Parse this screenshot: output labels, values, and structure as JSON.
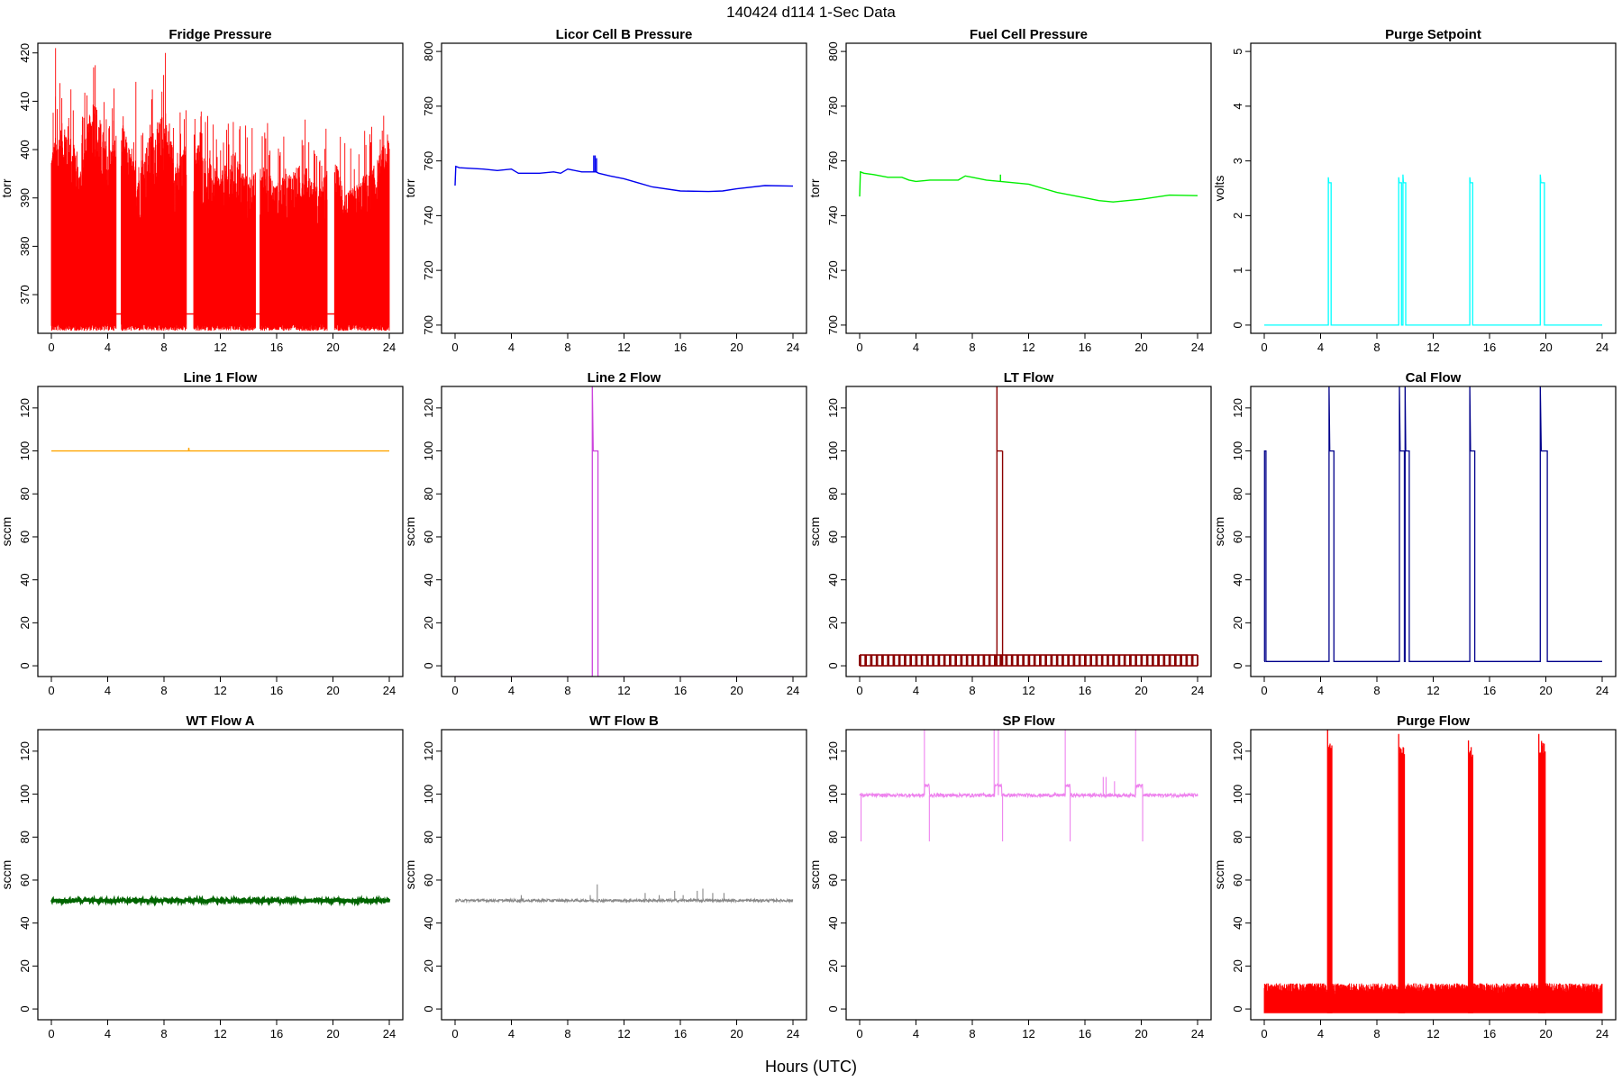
{
  "figure": {
    "title": "140424   d114   1-Sec Data",
    "xlabel": "Hours (UTC)"
  },
  "chart_data": [
    {
      "type": "line",
      "title": "Fridge Pressure",
      "ylabel": "torr",
      "color": "#ff0000",
      "xlim": [
        0,
        24
      ],
      "ylim": [
        362,
        422
      ],
      "xticks": [
        0,
        4,
        8,
        12,
        16,
        20,
        24
      ],
      "yticks": [
        370,
        380,
        390,
        400,
        410,
        420
      ],
      "style": "band",
      "base": 364,
      "top": [
        401,
        407,
        396,
        412,
        400,
        406,
        396,
        403,
        408,
        397,
        405,
        398,
        395,
        400,
        394,
        397,
        393,
        396,
        397,
        392,
        399,
        391,
        394,
        397,
        404
      ],
      "gaps": [
        [
          4.6,
          4.95
        ],
        [
          9.6,
          10.1
        ],
        [
          14.5,
          14.8
        ],
        [
          19.6,
          20.1
        ]
      ],
      "gap_level": 366
    },
    {
      "type": "line",
      "title": "Licor Cell B Pressure",
      "ylabel": "torr",
      "color": "#0000ee",
      "xlim": [
        0,
        24
      ],
      "ylim": [
        697,
        803
      ],
      "xticks": [
        0,
        4,
        8,
        12,
        16,
        20,
        24
      ],
      "yticks": [
        700,
        720,
        740,
        760,
        780,
        800
      ],
      "x": [
        0,
        0.05,
        0.3,
        2,
        3,
        4,
        4.5,
        6,
        7,
        7.5,
        8,
        9,
        10,
        10.2,
        11,
        12,
        13,
        14,
        16,
        18,
        19,
        20,
        22,
        24
      ],
      "y": [
        751,
        758,
        757.5,
        757,
        756.5,
        757,
        755.5,
        755.5,
        756,
        755.5,
        757,
        756,
        756,
        755.5,
        754.5,
        753.5,
        752,
        750.5,
        749,
        748.8,
        749,
        749.8,
        751,
        750.8
      ],
      "spikes": [
        {
          "x": 9.85,
          "y": 762
        },
        {
          "x": 9.95,
          "y": 762
        },
        {
          "x": 10.05,
          "y": 761
        }
      ]
    },
    {
      "type": "line",
      "title": "Fuel Cell Pressure",
      "ylabel": "torr",
      "color": "#00ee00",
      "xlim": [
        0,
        24
      ],
      "ylim": [
        697,
        803
      ],
      "xticks": [
        0,
        4,
        8,
        12,
        16,
        20,
        24
      ],
      "yticks": [
        700,
        720,
        740,
        760,
        780,
        800
      ],
      "x": [
        0,
        0.05,
        0.3,
        1,
        2,
        3,
        3.5,
        4,
        5,
        7,
        7.5,
        8,
        9,
        10,
        11,
        12,
        13,
        14,
        15,
        16,
        17,
        18,
        19,
        20,
        22,
        24
      ],
      "y": [
        747,
        756,
        755.5,
        755,
        754,
        754,
        753,
        752.5,
        753,
        753,
        754.5,
        754,
        753,
        752.5,
        752,
        751.5,
        750,
        748.5,
        747.5,
        746.5,
        745.5,
        745,
        745.5,
        746,
        747.5,
        747.3
      ],
      "spikes": [
        {
          "x": 10.0,
          "y": 755
        }
      ]
    },
    {
      "type": "line",
      "title": "Purge Setpoint",
      "ylabel": "volts",
      "color": "#00ffff",
      "xlim": [
        0,
        24
      ],
      "ylim": [
        -0.15,
        5.15
      ],
      "xticks": [
        0,
        4,
        8,
        12,
        16,
        20,
        24
      ],
      "yticks": [
        0,
        1,
        2,
        3,
        4,
        5
      ],
      "style": "steps",
      "base": 0,
      "pulses": [
        {
          "start": 4.55,
          "end": 4.75,
          "level": 2.6,
          "peak": 2.7
        },
        {
          "start": 9.55,
          "end": 9.75,
          "level": 2.6,
          "peak": 2.7
        },
        {
          "start": 9.85,
          "end": 10.05,
          "level": 2.6,
          "peak": 2.75
        },
        {
          "start": 14.6,
          "end": 14.8,
          "level": 2.6,
          "peak": 2.7
        },
        {
          "start": 19.6,
          "end": 19.9,
          "level": 2.6,
          "peak": 2.75
        }
      ]
    },
    {
      "type": "line",
      "title": "Line 1 Flow",
      "ylabel": "sccm",
      "color": "#ffa500",
      "xlim": [
        0,
        24
      ],
      "ylim": [
        -5,
        130
      ],
      "xticks": [
        0,
        4,
        8,
        12,
        16,
        20,
        24
      ],
      "yticks": [
        0,
        20,
        40,
        60,
        80,
        100,
        120
      ],
      "x": [
        0,
        9.75,
        9.76,
        9.78,
        24
      ],
      "y": [
        100,
        100,
        101.5,
        100,
        100
      ]
    },
    {
      "type": "line",
      "title": "Line 2 Flow",
      "ylabel": "sccm",
      "color": "#cc44dd",
      "xlim": [
        0,
        24
      ],
      "ylim": [
        -5,
        130
      ],
      "xticks": [
        0,
        4,
        8,
        12,
        16,
        20,
        24
      ],
      "yticks": [
        0,
        20,
        40,
        60,
        80,
        100,
        120
      ],
      "style": "steps",
      "base": -5,
      "pulses": [
        {
          "start": 9.75,
          "end": 10.15,
          "level": 100,
          "peak": 130
        }
      ]
    },
    {
      "type": "line",
      "title": "LT Flow",
      "ylabel": "sccm",
      "color": "#8b0000",
      "xlim": [
        0,
        24
      ],
      "ylim": [
        -5,
        130
      ],
      "xticks": [
        0,
        4,
        8,
        12,
        16,
        20,
        24
      ],
      "yticks": [
        0,
        20,
        40,
        60,
        80,
        100,
        120
      ],
      "style": "comb",
      "low": 0,
      "high": 5,
      "period": 0.4,
      "pulses": [
        {
          "start": 9.75,
          "end": 10.15,
          "level": 100,
          "peak": 130
        }
      ]
    },
    {
      "type": "line",
      "title": "Cal Flow",
      "ylabel": "sccm",
      "color": "#00008b",
      "xlim": [
        0,
        24
      ],
      "ylim": [
        -5,
        130
      ],
      "xticks": [
        0,
        4,
        8,
        12,
        16,
        20,
        24
      ],
      "yticks": [
        0,
        20,
        40,
        60,
        80,
        100,
        120
      ],
      "style": "steps",
      "base": 2,
      "pulses": [
        {
          "start": 0.02,
          "end": 0.12,
          "level": 100,
          "peak": 100
        },
        {
          "start": 4.6,
          "end": 4.95,
          "level": 100,
          "peak": 130
        },
        {
          "start": 9.6,
          "end": 9.95,
          "level": 100,
          "peak": 130
        },
        {
          "start": 10.0,
          "end": 10.3,
          "level": 100,
          "peak": 130
        },
        {
          "start": 14.6,
          "end": 14.95,
          "level": 100,
          "peak": 130
        },
        {
          "start": 19.6,
          "end": 20.1,
          "level": 100,
          "peak": 130
        }
      ]
    },
    {
      "type": "line",
      "title": "WT Flow A",
      "ylabel": "sccm",
      "color": "#006400",
      "xlim": [
        0,
        24
      ],
      "ylim": [
        -5,
        130
      ],
      "xticks": [
        0,
        4,
        8,
        12,
        16,
        20,
        24
      ],
      "yticks": [
        0,
        20,
        40,
        60,
        80,
        100,
        120
      ],
      "style": "noise",
      "level": 50.5,
      "amp": 0.8,
      "spikes": []
    },
    {
      "type": "line",
      "title": "WT Flow B",
      "ylabel": "sccm",
      "color": "#888888",
      "xlim": [
        0,
        24
      ],
      "ylim": [
        -5,
        130
      ],
      "xticks": [
        0,
        4,
        8,
        12,
        16,
        20,
        24
      ],
      "yticks": [
        0,
        20,
        40,
        60,
        80,
        100,
        120
      ],
      "style": "noise",
      "level": 50.5,
      "amp": 0.6,
      "spikes": [
        {
          "x": 4.7,
          "y": 53
        },
        {
          "x": 9.6,
          "y": 53
        },
        {
          "x": 10.1,
          "y": 58
        },
        {
          "x": 13.5,
          "y": 54
        },
        {
          "x": 14.5,
          "y": 53
        },
        {
          "x": 15.6,
          "y": 55
        },
        {
          "x": 16.2,
          "y": 53
        },
        {
          "x": 17.2,
          "y": 55
        },
        {
          "x": 17.6,
          "y": 56
        },
        {
          "x": 18.3,
          "y": 54
        },
        {
          "x": 19.1,
          "y": 54
        }
      ]
    },
    {
      "type": "line",
      "title": "SP Flow",
      "ylabel": "sccm",
      "color": "#ee82ee",
      "xlim": [
        0,
        24
      ],
      "ylim": [
        -5,
        130
      ],
      "xticks": [
        0,
        4,
        8,
        12,
        16,
        20,
        24
      ],
      "yticks": [
        0,
        20,
        40,
        60,
        80,
        100,
        120
      ],
      "style": "noise",
      "level": 99.5,
      "amp": 0.8,
      "plateaus": [
        {
          "start": 4.6,
          "end": 4.95,
          "level": 104
        },
        {
          "start": 9.6,
          "end": 10.1,
          "level": 104
        },
        {
          "start": 14.6,
          "end": 14.95,
          "level": 104
        },
        {
          "start": 19.6,
          "end": 20.1,
          "level": 104
        }
      ],
      "spikes": [
        {
          "x": 0.1,
          "y": 78
        },
        {
          "x": 4.6,
          "y": 130
        },
        {
          "x": 4.95,
          "y": 78
        },
        {
          "x": 9.55,
          "y": 130
        },
        {
          "x": 9.85,
          "y": 130
        },
        {
          "x": 10.15,
          "y": 78
        },
        {
          "x": 14.6,
          "y": 130
        },
        {
          "x": 14.95,
          "y": 78
        },
        {
          "x": 19.6,
          "y": 130
        },
        {
          "x": 20.1,
          "y": 78
        },
        {
          "x": 17.3,
          "y": 108
        },
        {
          "x": 17.5,
          "y": 108
        },
        {
          "x": 18.1,
          "y": 106
        }
      ]
    },
    {
      "type": "line",
      "title": "Purge Flow",
      "ylabel": "sccm",
      "color": "#ff0000",
      "xlim": [
        0,
        24
      ],
      "ylim": [
        -5,
        130
      ],
      "xticks": [
        0,
        4,
        8,
        12,
        16,
        20,
        24
      ],
      "yticks": [
        0,
        20,
        40,
        60,
        80,
        100,
        120
      ],
      "style": "band",
      "base": -2,
      "top": [
        12
      ],
      "gaps": [],
      "pulses": [
        {
          "start": 4.5,
          "end": 4.8,
          "level": 125,
          "peak": 130
        },
        {
          "start": 9.55,
          "end": 9.95,
          "level": 122,
          "peak": 128
        },
        {
          "start": 14.5,
          "end": 14.8,
          "level": 122,
          "peak": 125
        },
        {
          "start": 19.5,
          "end": 19.95,
          "level": 125,
          "peak": 128
        }
      ]
    }
  ]
}
